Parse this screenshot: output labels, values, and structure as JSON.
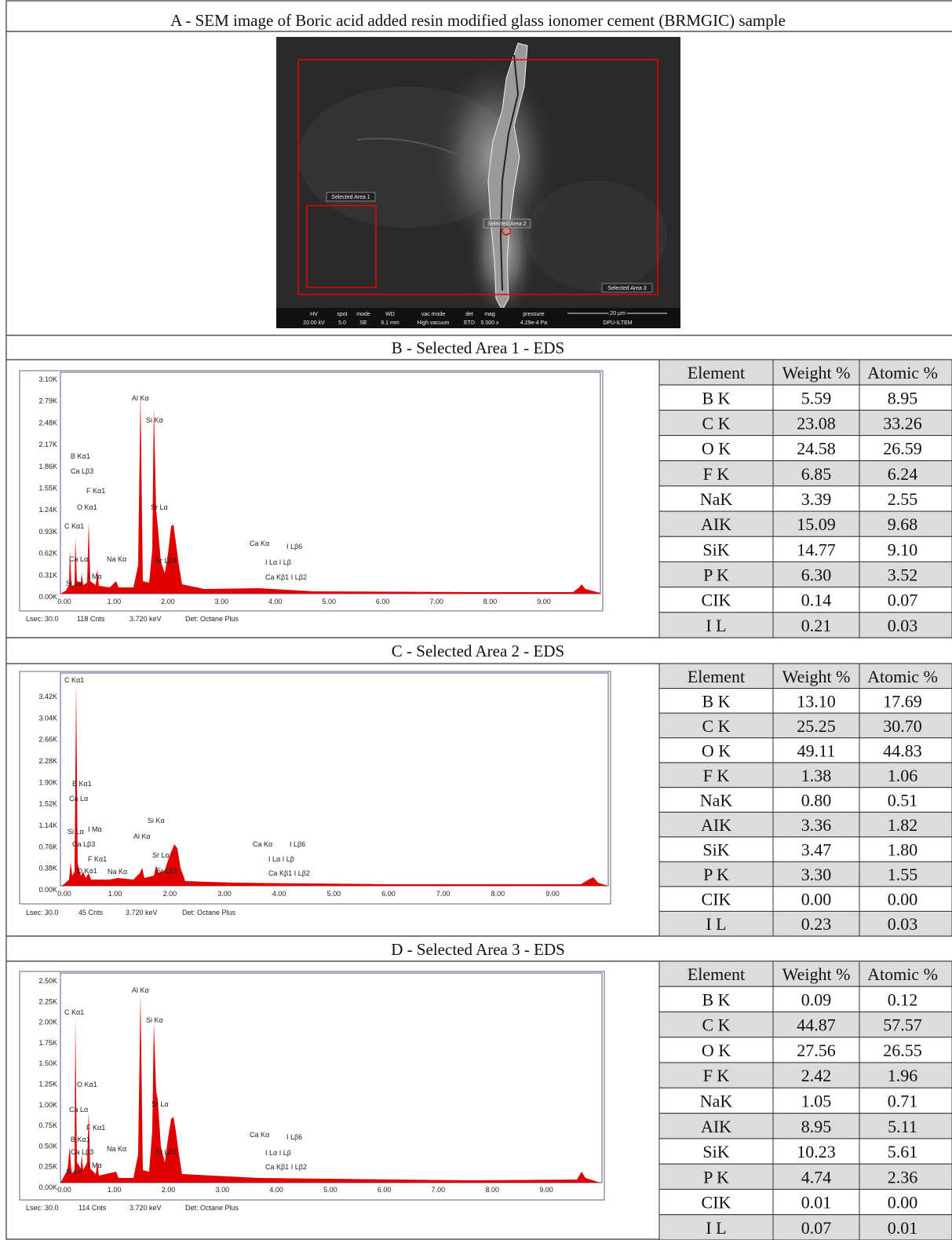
{
  "panel_a": {
    "title": "A - SEM image of Boric acid added resin modified glass ionomer cement (BRMGIC) sample",
    "sem": {
      "area_labels": [
        "Selected Area 1",
        "Selected Area 2",
        "Selected Area 3"
      ],
      "info_bar": [
        {
          "label": "HV",
          "value": "20.00 kV"
        },
        {
          "label": "spot",
          "value": "5.0"
        },
        {
          "label": "mode",
          "value": "SE"
        },
        {
          "label": "WD",
          "value": "6.1 mm"
        },
        {
          "label": "vac mode",
          "value": "High vacuum"
        },
        {
          "label": "det",
          "value": "ETD"
        },
        {
          "label": "mag",
          "value": "5 000 x"
        },
        {
          "label": "pressure",
          "value": "4.29e-4 Pa"
        }
      ],
      "scale_bar": "20 µm",
      "facility": "DPU-ILTEM"
    }
  },
  "panels": [
    {
      "title": "B - Selected Area 1 - EDS",
      "spectrum": {
        "yticks": [
          "3.10K",
          "2.79K",
          "2.48K",
          "2.17K",
          "1.86K",
          "1.55K",
          "1.24K",
          "0.93K",
          "0.62K",
          "0.31K",
          "0.00K"
        ],
        "xticks": [
          "0.00",
          "1.00",
          "2.00",
          "3.00",
          "4.00",
          "5.00",
          "6.00",
          "7.00",
          "8.00",
          "9.00"
        ],
        "peaks": [
          "Al Kα",
          "Si Kα",
          "B Kα1",
          "Ca Lβ3",
          "F Kα1",
          "O Kα1",
          "Sr Lα",
          "C Kα1",
          "Ca Kα",
          "I Lβ6",
          "Ca Lα",
          "Na Kα",
          "Sr Lβ3",
          "I Lα I Lβ",
          "I Mα",
          "Ca Kβ1 I Lβ2",
          "Si Lα"
        ],
        "footer": [
          "Lsec: 30.0",
          "118 Cnts",
          "3.720 keV",
          "Det: Octane Plus"
        ]
      },
      "table": {
        "header": [
          "Element",
          "Weight %",
          "Atomic %"
        ],
        "rows": [
          [
            "B K",
            "5.59",
            "8.95"
          ],
          [
            "C K",
            "23.08",
            "33.26"
          ],
          [
            "O K",
            "24.58",
            "26.59"
          ],
          [
            "F K",
            "6.85",
            "6.24"
          ],
          [
            "NaK",
            "3.39",
            "2.55"
          ],
          [
            "AIK",
            "15.09",
            "9.68"
          ],
          [
            "SiK",
            "14.77",
            "9.10"
          ],
          [
            "P K",
            "6.30",
            "3.52"
          ],
          [
            "CIK",
            "0.14",
            "0.07"
          ],
          [
            "I L",
            "0.21",
            "0.03"
          ]
        ]
      }
    },
    {
      "title": "C - Selected Area 2 - EDS",
      "spectrum": {
        "yticks": [
          "3.42K",
          "3.04K",
          "2.66K",
          "2.28K",
          "1.90K",
          "1.52K",
          "1.14K",
          "0.76K",
          "0.38K",
          "0.00K"
        ],
        "xticks": [
          "0.00",
          "1.00",
          "2.00",
          "3.00",
          "4.00",
          "5.00",
          "6.00",
          "7.00",
          "8.00",
          "9.00"
        ],
        "peaks": [
          "C Kα1",
          "B Kα1",
          "Ca Lα",
          "Si Lα",
          "I Mα",
          "Al Kα",
          "Si Kα",
          "Ca Lβ3",
          "F Kα1",
          "O Kα1",
          "Na Kα",
          "Sr Lα",
          "Sr Lβ3",
          "Ca Kα",
          "I Lβ6",
          "I Lα I Lβ",
          "Ca Kβ1 I Lβ2"
        ],
        "footer": [
          "Lsec: 30.0",
          "45 Cnts",
          "3.720 keV",
          "Det: Octane Plus"
        ]
      },
      "table": {
        "header": [
          "Element",
          "Weight %",
          "Atomic %"
        ],
        "rows": [
          [
            "B K",
            "13.10",
            "17.69"
          ],
          [
            "C K",
            "25.25",
            "30.70"
          ],
          [
            "O K",
            "49.11",
            "44.83"
          ],
          [
            "F K",
            "1.38",
            "1.06"
          ],
          [
            "NaK",
            "0.80",
            "0.51"
          ],
          [
            "AIK",
            "3.36",
            "1.82"
          ],
          [
            "SiK",
            "3.47",
            "1.80"
          ],
          [
            "P K",
            "3.30",
            "1.55"
          ],
          [
            "CIK",
            "0.00",
            "0.00"
          ],
          [
            "I L",
            "0.23",
            "0.03"
          ]
        ]
      }
    },
    {
      "title": "D - Selected Area 3 - EDS",
      "spectrum": {
        "yticks": [
          "2.50K",
          "2.25K",
          "2.00K",
          "1.75K",
          "1.50K",
          "1.25K",
          "1.00K",
          "0.75K",
          "0.50K",
          "0.25K",
          "0.00K"
        ],
        "xticks": [
          "0.00",
          "1.00",
          "2.00",
          "3.00",
          "4.00",
          "5.00",
          "6.00",
          "7.00",
          "8.00",
          "9.00"
        ],
        "peaks": [
          "Al Kα",
          "C Kα1",
          "Si Kα",
          "O Kα1",
          "Sr Lα",
          "Ca Lα",
          "F Kα1",
          "Ca Kα",
          "I Lβ6",
          "B Kα1",
          "Ca Lβ3",
          "Na Kα",
          "Sr Lβ3",
          "I Lα I Lβ",
          "I Mα",
          "Ca Kβ1 I Lβ2",
          "Si Lα"
        ],
        "footer": [
          "Lsec: 30.0",
          "114 Cnts",
          "3.720 keV",
          "Det: Octane Plus"
        ]
      },
      "table": {
        "header": [
          "Element",
          "Weight %",
          "Atomic %"
        ],
        "rows": [
          [
            "B K",
            "0.09",
            "0.12"
          ],
          [
            "C K",
            "44.87",
            "57.57"
          ],
          [
            "O K",
            "27.56",
            "26.55"
          ],
          [
            "F K",
            "2.42",
            "1.96"
          ],
          [
            "NaK",
            "1.05",
            "0.71"
          ],
          [
            "AIK",
            "8.95",
            "5.11"
          ],
          [
            "SiK",
            "10.23",
            "5.61"
          ],
          [
            "P K",
            "4.74",
            "2.36"
          ],
          [
            "CIK",
            "0.01",
            "0.00"
          ],
          [
            "I L",
            "0.07",
            "0.01"
          ]
        ]
      }
    }
  ]
}
